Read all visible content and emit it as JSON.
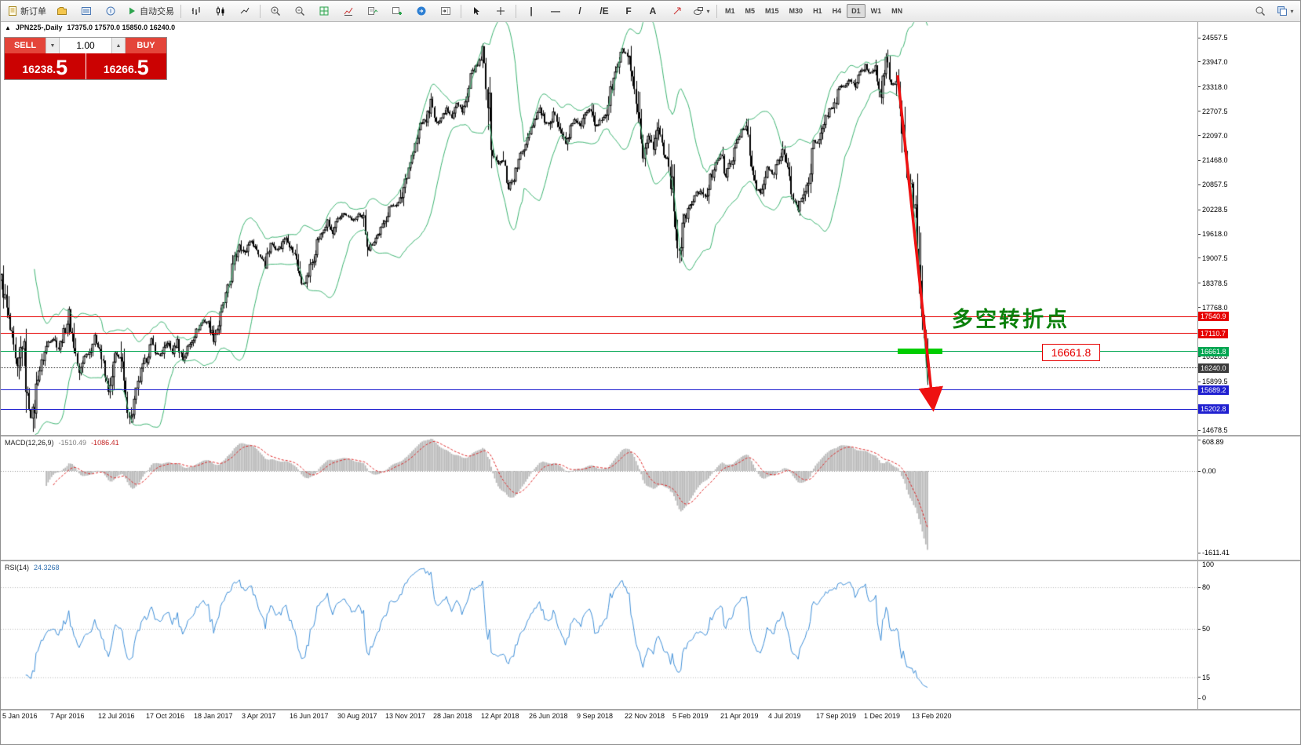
{
  "toolbar": {
    "new_order_label": "新订单",
    "auto_trading_label": "自动交易",
    "timeframes": [
      "M1",
      "M5",
      "M15",
      "M30",
      "H1",
      "H4",
      "D1",
      "W1",
      "MN"
    ],
    "active_timeframe": "D1"
  },
  "icons": {
    "collapse": "▲",
    "volume_down": "▼",
    "volume_up": "▲",
    "vertical_line": "|",
    "horizontal_line": "—",
    "trendline": "/",
    "channel": "/E",
    "fibonacci": "F",
    "text_tool": "A",
    "dropdown": "▾"
  },
  "chart": {
    "symbol_title": "JPN225-,Daily",
    "ohlc_text": "17375.0 17570.0 15850.0 16240.0"
  },
  "order_panel": {
    "sell_label": "SELL",
    "buy_label": "BUY",
    "volume": "1.00",
    "sell_price_int": "16238.",
    "sell_price_frac": "5",
    "buy_price_int": "16266.",
    "buy_price_frac": "5"
  },
  "annotations": {
    "turning_point": "多空转折点",
    "price_callout": "16661.8"
  },
  "indicators": {
    "macd": {
      "name": "MACD(12,26,9)",
      "value1": "-1510.49",
      "value2": "-1086.41",
      "axis_labels": [
        "608.89",
        "0.00",
        "-1611.41"
      ]
    },
    "rsi": {
      "name": "RSI(14)",
      "value": "24.3268",
      "axis_labels": [
        "100",
        "80",
        "50",
        "15",
        "0"
      ],
      "levels": [
        80,
        50,
        15
      ]
    }
  },
  "colors": {
    "band_green": "#3cb371",
    "level_red": "#e60000",
    "level_green": "#00a651",
    "level_blue": "#1f1fd0",
    "current_price_bg": "#3c3c3c",
    "support_green": "#00cd00",
    "macd_silver": "#b8b8b8",
    "macd_signal_red": "#dd2222",
    "rsi_blue": "#3e8ed7",
    "arrow_red": "#ee1111",
    "candle_black": "#000000"
  },
  "chart_data": {
    "type": "candlestick",
    "symbol": "JPN225-",
    "timeframe": "Daily",
    "ohlc": {
      "open": 17375.0,
      "high": 17570.0,
      "low": 15850.0,
      "close": 16240.0
    },
    "price_axis_labels": [
      "24557.5",
      "23947.0",
      "23318.0",
      "22707.5",
      "22097.0",
      "21468.0",
      "20857.5",
      "20228.5",
      "19618.0",
      "19007.5",
      "18378.5",
      "17768.0",
      "16528.5",
      "15899.5",
      "14678.5"
    ],
    "levels": [
      {
        "value": 17540.9,
        "label": "17540.9",
        "color": "#e60000",
        "style": "solid"
      },
      {
        "value": 17110.7,
        "label": "17110.7",
        "color": "#e60000",
        "style": "solid"
      },
      {
        "value": 16661.8,
        "label": "16661.8",
        "color": "#00a651",
        "style": "solid"
      },
      {
        "value": 16240.0,
        "label": "16240.0",
        "color": "#3c3c3c",
        "style": "dotted",
        "current": true
      },
      {
        "value": 15689.2,
        "label": "15689.2",
        "color": "#1f1fd0",
        "style": "solid"
      },
      {
        "value": 15202.8,
        "label": "15202.8",
        "color": "#1f1fd0",
        "style": "solid"
      }
    ],
    "x_labels": [
      "5 Jan 2016",
      "7 Apr 2016",
      "12 Jul 2016",
      "17 Oct 2016",
      "18 Jan 2017",
      "3 Apr 2017",
      "16 Jun 2017",
      "30 Aug 2017",
      "13 Nov 2017",
      "28 Jan 2018",
      "12 Apr 2018",
      "26 Jun 2018",
      "9 Sep 2018",
      "22 Nov 2018",
      "5 Feb 2019",
      "21 Apr 2019",
      "4 Jul 2019",
      "17 Sep 2019",
      "1 Dec 2019",
      "13 Feb 2020"
    ],
    "bollinger": {
      "period": 20,
      "deviation": 2
    },
    "macd_params": [
      12,
      26,
      9
    ],
    "rsi_params": 14,
    "price_path": [
      18450,
      17700,
      16900,
      16017,
      17000,
      15500,
      14950,
      16050,
      16500,
      16900,
      17000,
      16750,
      17100,
      17550,
      16850,
      16050,
      16550,
      16650,
      17000,
      16750,
      16000,
      15600,
      16600,
      16500,
      15400,
      14950,
      15600,
      16150,
      16500,
      16900,
      16600,
      16550,
      16900,
      16650,
      16900,
      16450,
      16750,
      17000,
      17250,
      17450,
      17350,
      17000,
      17350,
      17900,
      18350,
      18950,
      19400,
      19100,
      19450,
      19300,
      19050,
      18900,
      19400,
      19250,
      19300,
      19600,
      19250,
      19000,
      18350,
      18450,
      18900,
      19450,
      19650,
      19900,
      19600,
      19950,
      20150,
      20050,
      19950,
      20100,
      19950,
      19250,
      19450,
      19650,
      19900,
      20300,
      20350,
      20400,
      21000,
      21450,
      21800,
      22400,
      22500,
      22900,
      22400,
      22550,
      22800,
      22600,
      22900,
      22750,
      23000,
      23700,
      23850,
      24100,
      23200,
      21600,
      21400,
      21450,
      20800,
      21050,
      21450,
      21800,
      22200,
      22500,
      22750,
      22450,
      22300,
      22700,
      22300,
      21850,
      22300,
      22500,
      22300,
      22700,
      22850,
      22300,
      22500,
      22700,
      23350,
      23800,
      24250,
      24120,
      23350,
      22600,
      21250,
      22150,
      21800,
      22350,
      21650,
      21450,
      20350,
      19150,
      20000,
      20300,
      20550,
      20750,
      20450,
      21000,
      21450,
      21600,
      21050,
      21450,
      21800,
      22250,
      22300,
      21250,
      20750,
      20600,
      21300,
      21100,
      21450,
      21750,
      21150,
      20500,
      20260,
      20600,
      21050,
      21950,
      21850,
      22450,
      22750,
      22850,
      23300,
      23350,
      23500,
      23350,
      23650,
      23850,
      23650,
      23850,
      23200,
      23950,
      23400,
      23386,
      22400,
      21150,
      20750,
      19700,
      17400,
      16250
    ]
  }
}
